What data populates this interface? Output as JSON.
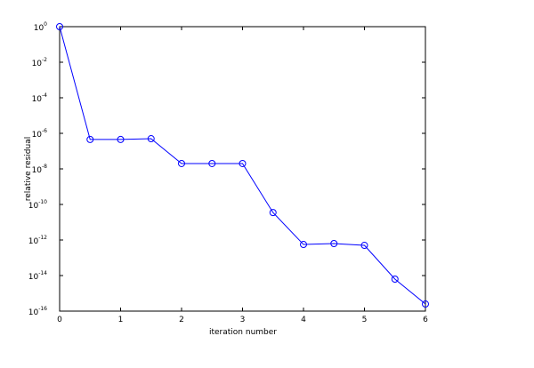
{
  "chart_data": {
    "type": "line",
    "xlabel": "iteration number",
    "ylabel": "relative residual",
    "x": [
      0,
      0.5,
      1,
      1.5,
      2,
      2.5,
      3,
      3.5,
      4,
      4.5,
      5,
      5.5,
      6
    ],
    "values": [
      1,
      4.5e-07,
      4.5e-07,
      5e-07,
      2e-08,
      2e-08,
      2e-08,
      3.5e-11,
      5.6e-13,
      6.3e-13,
      5e-13,
      6.3e-15,
      2.5e-16
    ],
    "color": "#0000ff",
    "marker": "circle",
    "xlim": [
      0,
      6
    ],
    "xticks": [
      0,
      1,
      2,
      3,
      4,
      5,
      6
    ],
    "ylim": [
      1e-16,
      1
    ],
    "yscale": "log",
    "yticks": [
      {
        "value": 1e-16,
        "label": "10",
        "exponent": "-16"
      },
      {
        "value": 1e-14,
        "label": "10",
        "exponent": "-14"
      },
      {
        "value": 1e-12,
        "label": "10",
        "exponent": "-12"
      },
      {
        "value": 1e-10,
        "label": "10",
        "exponent": "-10"
      },
      {
        "value": 1e-08,
        "label": "10",
        "exponent": "-8"
      },
      {
        "value": 1e-06,
        "label": "10",
        "exponent": "-6"
      },
      {
        "value": 0.0001,
        "label": "10",
        "exponent": "-4"
      },
      {
        "value": 0.01,
        "label": "10",
        "exponent": "-2"
      },
      {
        "value": 1,
        "label": "10",
        "exponent": "0"
      }
    ]
  }
}
